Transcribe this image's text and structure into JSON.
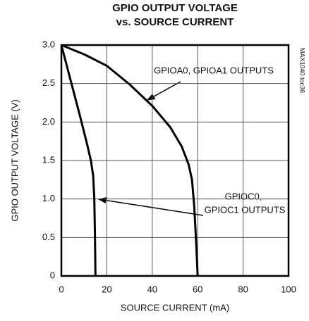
{
  "chart_data": {
    "type": "line",
    "title": [
      "GPIO OUTPUT VOLTAGE",
      "vs. SOURCE CURRENT"
    ],
    "xlabel": "SOURCE CURRENT (mA)",
    "ylabel": "GPIO OUTPUT VOLTAGE (V)",
    "annotations": [
      "GPIOA0, GPIOA1 OUTPUTS",
      "GPIOC0,",
      "GPIOC1 OUTPUTS",
      "MAX1040 toc36"
    ],
    "xlim": [
      0,
      100
    ],
    "xticks": [
      0,
      20,
      40,
      60,
      80,
      100
    ],
    "ylim": [
      0,
      3
    ],
    "yticks": [
      0,
      0.5,
      {
        "value": 1,
        "label": "1.0"
      },
      1.5,
      {
        "value": 2,
        "label": "2.0"
      },
      2.5,
      {
        "value": 3,
        "label": "3.0"
      }
    ],
    "grid": true,
    "series": [
      {
        "color": "#000000",
        "x": [
          0,
          10,
          20,
          30,
          40,
          48,
          53,
          56,
          57.5,
          58.5,
          59.3,
          60
        ],
        "values": [
          3,
          2.88,
          2.73,
          2.49,
          2.21,
          1.93,
          1.68,
          1.45,
          1.25,
          0.9,
          0.45,
          0
        ]
      },
      {
        "color": "#000000",
        "x": [
          0,
          4,
          8,
          11,
          13,
          14,
          14.5,
          14.8,
          15
        ],
        "values": [
          3,
          2.55,
          2.1,
          1.75,
          1.5,
          1.3,
          1.0,
          0.5,
          0
        ]
      }
    ]
  }
}
